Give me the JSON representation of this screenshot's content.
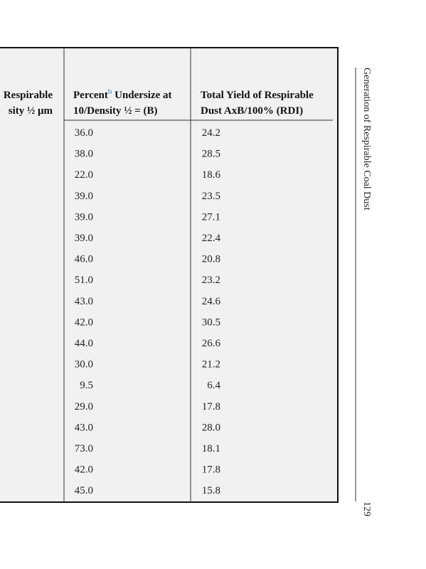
{
  "running_header": {
    "title": "Generation of Respirable Coal Dust",
    "page_number": "129"
  },
  "table": {
    "columns": [
      {
        "line1": "Respirable",
        "line2": "sity ½ μm"
      },
      {
        "line1_pre": "Percent",
        "footnote": "b",
        "line1_post": " Undersize at",
        "line2": "10/Density ½  = (B)"
      },
      {
        "line1": "Total Yield of Respirable",
        "line2": "Dust AxB/100% (RDI)"
      }
    ],
    "rows": [
      [
        "36.0",
        "24.2"
      ],
      [
        "38.0",
        "28.5"
      ],
      [
        "22.0",
        "18.6"
      ],
      [
        "39.0",
        "23.5"
      ],
      [
        "39.0",
        "27.1"
      ],
      [
        "39.0",
        "22.4"
      ],
      [
        "46.0",
        "20.8"
      ],
      [
        "51.0",
        "23.2"
      ],
      [
        "43.0",
        "24.6"
      ],
      [
        "42.0",
        "30.5"
      ],
      [
        "44.0",
        "26.6"
      ],
      [
        "30.0",
        "21.2"
      ],
      [
        "9.5",
        "6.4"
      ],
      [
        "29.0",
        "17.8"
      ],
      [
        "43.0",
        "28.0"
      ],
      [
        "73.0",
        "18.1"
      ],
      [
        "42.0",
        "17.8"
      ],
      [
        "45.0",
        "15.8"
      ]
    ]
  }
}
